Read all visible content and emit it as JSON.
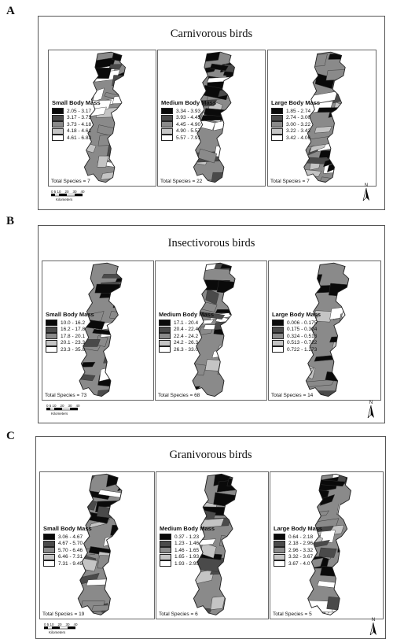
{
  "panels": [
    {
      "letter": "A",
      "title": "Carnivorous birds",
      "maps": [
        {
          "legend_title": "Small Body Mass",
          "classes": [
            "2.05 - 3.17",
            "3.17 - 3.73",
            "3.73 - 4.18",
            "4.18 - 4.61",
            "4.61 - 6.83"
          ],
          "total": "Total Species = 7"
        },
        {
          "legend_title": "Medium Body Mass",
          "classes": [
            "3.34 - 3.93",
            "3.93 - 4.45",
            "4.45 - 4.90",
            "4.90 - 5.57",
            "5.57 - 7.91"
          ],
          "total": "Total Species = 22"
        },
        {
          "legend_title": "Large Body Mass",
          "classes": [
            "1.85 - 2.74",
            "2.74 - 3.00",
            "3.00 - 3.22",
            "3.22 - 3.42",
            "3.42 - 4.06"
          ],
          "total": "Total Species = 7"
        }
      ]
    },
    {
      "letter": "B",
      "title": "Insectivorous birds",
      "maps": [
        {
          "legend_title": "Small Body Mass",
          "classes": [
            "10.0 - 16.2",
            "16.2 - 17.8",
            "17.8 - 20.1",
            "20.1 - 23.3",
            "23.3 - 35.8"
          ],
          "total": "Total Species = 73"
        },
        {
          "legend_title": "Medium Body Mass",
          "classes": [
            "17.1 - 20.4",
            "20.4 - 22.4",
            "22.4 - 24.2",
            "24.2 - 26.3",
            "26.3 - 33.0"
          ],
          "total": "Total Species = 68"
        },
        {
          "legend_title": "Large Body Mass",
          "classes": [
            "0.006 - 0.175",
            "0.175 - 0.324",
            "0.324 - 0.513",
            "0.513 - 0.722",
            "0.722 - 1.273"
          ],
          "total": "Total Species = 14"
        }
      ]
    },
    {
      "letter": "C",
      "title": "Granivorous birds",
      "maps": [
        {
          "legend_title": "Small Body Mass",
          "classes": [
            "3.06 - 4.67",
            "4.67 - 5.70",
            "5.70 - 6.46",
            "6.46 - 7.31",
            "7.31 - 9.49"
          ],
          "total": "Total Species = 19"
        },
        {
          "legend_title": "Medium Body Mass",
          "classes": [
            "0.37 - 1.23",
            "1.23 - 1.46",
            "1.46 - 1.65",
            "1.65 - 1.93",
            "1.93 - 2.95"
          ],
          "total": "Total Species = 6"
        },
        {
          "legend_title": "Large Body Mass",
          "classes": [
            "0.64 - 2.18",
            "2.18 - 2.96",
            "2.96 - 3.32",
            "3.32 - 3.67",
            "3.67 - 4.0"
          ],
          "total": "Total Species = 5"
        }
      ]
    }
  ],
  "legend_colors": [
    "#0a0a0a",
    "#4a4a4a",
    "#8a8a8a",
    "#c4c4c4",
    "#ffffff"
  ],
  "scale_bar": {
    "ticks": "0 5 10    20    30    40",
    "unit": "Kilometers"
  },
  "north_arrow": {
    "label": "N"
  }
}
